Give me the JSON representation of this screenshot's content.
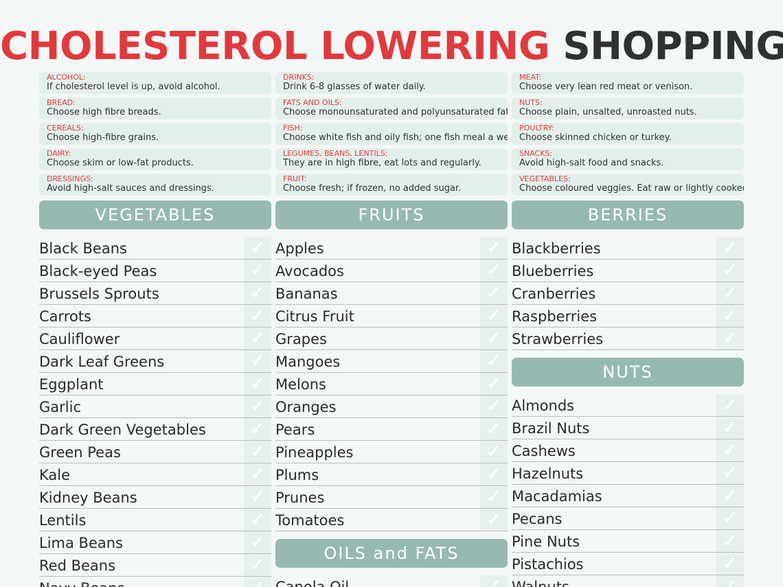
{
  "title": {
    "part1": "CHOLESTEROL LOWERING",
    "part2": "SHOPPING"
  },
  "tips": [
    [
      {
        "label": "ALCOHOL:",
        "text": "If cholesterol level is up, avoid alcohol."
      },
      {
        "label": "BREAD:",
        "text": "Choose high fibre breads."
      },
      {
        "label": "CEREALS:",
        "text": "Choose high-fibre grains."
      },
      {
        "label": "DAIRY:",
        "text": "Choose skim or low-fat products."
      },
      {
        "label": "DRESSINGS:",
        "text": "Avoid high-salt sauces and dressings."
      }
    ],
    [
      {
        "label": "DRINKS:",
        "text": "Drink 6-8 glasses of water daily."
      },
      {
        "label": "FATS AND OILS:",
        "text": "Choose monounsaturated and polyunsaturated fats."
      },
      {
        "label": "FISH:",
        "text": "Choose white fish and oily fish; one fish meal a week"
      },
      {
        "label": "LEGUMES, BEANS, LENTILS:",
        "text": "They are in high fibre, eat lots and regularly."
      },
      {
        "label": "FRUIT:",
        "text": "Choose fresh; if frozen, no added sugar."
      }
    ],
    [
      {
        "label": "MEAT:",
        "text": "Choose very lean red meat or venison."
      },
      {
        "label": "NUTS:",
        "text": "Choose plain, unsalted, unroasted nuts."
      },
      {
        "label": "POULTRY:",
        "text": "Choose skinned chicken or turkey."
      },
      {
        "label": "SNACKS:",
        "text": "Avoid high-salt food and snacks."
      },
      {
        "label": "VEGETABLES:",
        "text": "Choose coloured veggies. Eat raw or lightly cooked."
      }
    ]
  ],
  "check_glyph": "✓",
  "columns": {
    "vegetables": {
      "header": "VEGETABLES",
      "items": [
        "Black Beans",
        "Black-eyed Peas",
        "Brussels Sprouts",
        "Carrots",
        "Cauliflower",
        "Dark Leaf Greens",
        "Eggplant",
        "Garlic",
        "Dark Green Vegetables",
        "Green Peas",
        "Kale",
        "Kidney Beans",
        "Lentils",
        "Lima Beans",
        "Red Beans",
        "Navy Beans"
      ]
    },
    "fruits": {
      "header": "FRUITS",
      "items": [
        "Apples",
        "Avocados",
        "Bananas",
        "Citrus Fruit",
        "Grapes",
        "Mangoes",
        "Melons",
        "Oranges",
        "Pears",
        "Pineapples",
        "Plums",
        "Prunes",
        "Tomatoes"
      ]
    },
    "oils": {
      "header": "OILS and FATS",
      "items": [
        "Canola Oil"
      ]
    },
    "berries": {
      "header": "BERRIES",
      "items": [
        "Blackberries",
        "Blueberries",
        "Cranberries",
        "Raspberries",
        "Strawberries"
      ]
    },
    "nuts": {
      "header": "NUTS",
      "items": [
        "Almonds",
        "Brazil Nuts",
        "Cashews",
        "Hazelnuts",
        "Macadamias",
        "Pecans",
        "Pine Nuts",
        "Pistachios",
        "Walnuts"
      ]
    }
  }
}
